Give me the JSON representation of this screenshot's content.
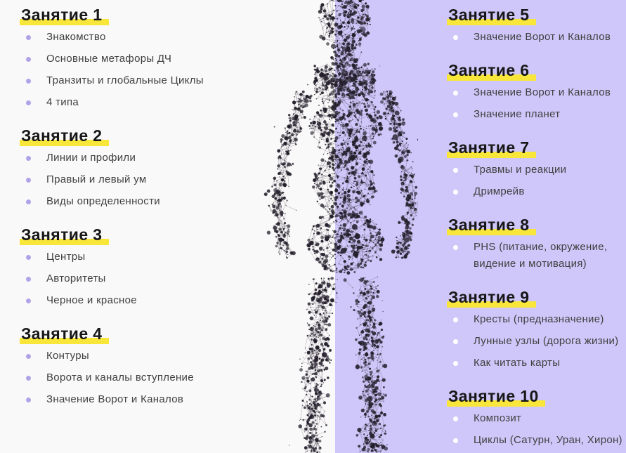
{
  "theme": {
    "left_bg": "#faf9f9",
    "right_bg": "#cfc7f9",
    "highlight": "#f8e73a",
    "heading_color": "#171717",
    "text_color": "#3f3f3f",
    "bullet_left": "#b1a3e8",
    "bullet_right": "#ffffff",
    "figure_dot": "#241f2b",
    "figure_line": "rgba(52,46,62,0.3)"
  },
  "figure": {
    "name": "dot-human-silhouette",
    "seed": 12
  },
  "columns": {
    "left": [
      {
        "title": "Занятие 1",
        "items": [
          "Знакомство",
          "Основные метафоры ДЧ",
          "Транзиты и глобальные Циклы",
          "4 типа"
        ]
      },
      {
        "title": "Занятие 2",
        "items": [
          "Линии и профили",
          "Правый и левый ум",
          "Виды определенности"
        ]
      },
      {
        "title": "Занятие 3",
        "items": [
          "Центры",
          "Авторитеты",
          "Черное и красное"
        ]
      },
      {
        "title": "Занятие 4",
        "items": [
          "Контуры",
          "Ворота и каналы вступление",
          "Значение Ворот и Каналов"
        ]
      }
    ],
    "right": [
      {
        "title": "Занятие 5",
        "items": [
          "Значение Ворот и Каналов"
        ]
      },
      {
        "title": "Занятие 6",
        "items": [
          "Значение Ворот и Каналов",
          "Значение планет"
        ]
      },
      {
        "title": "Занятие 7",
        "items": [
          "Травмы и реакции",
          "Дримрейв"
        ]
      },
      {
        "title": "Занятие 8",
        "items": [
          "PHS (питание, окружение, видение и мотивация)"
        ]
      },
      {
        "title": "Занятие 9",
        "items": [
          "Кресты (предназначение)",
          "Лунные узлы (дорога жизни)",
          "Как читать карты"
        ]
      },
      {
        "title": "Занятие 10",
        "items": [
          "Композит",
          "Циклы (Сатурн, Уран, Хирон)"
        ]
      }
    ]
  }
}
